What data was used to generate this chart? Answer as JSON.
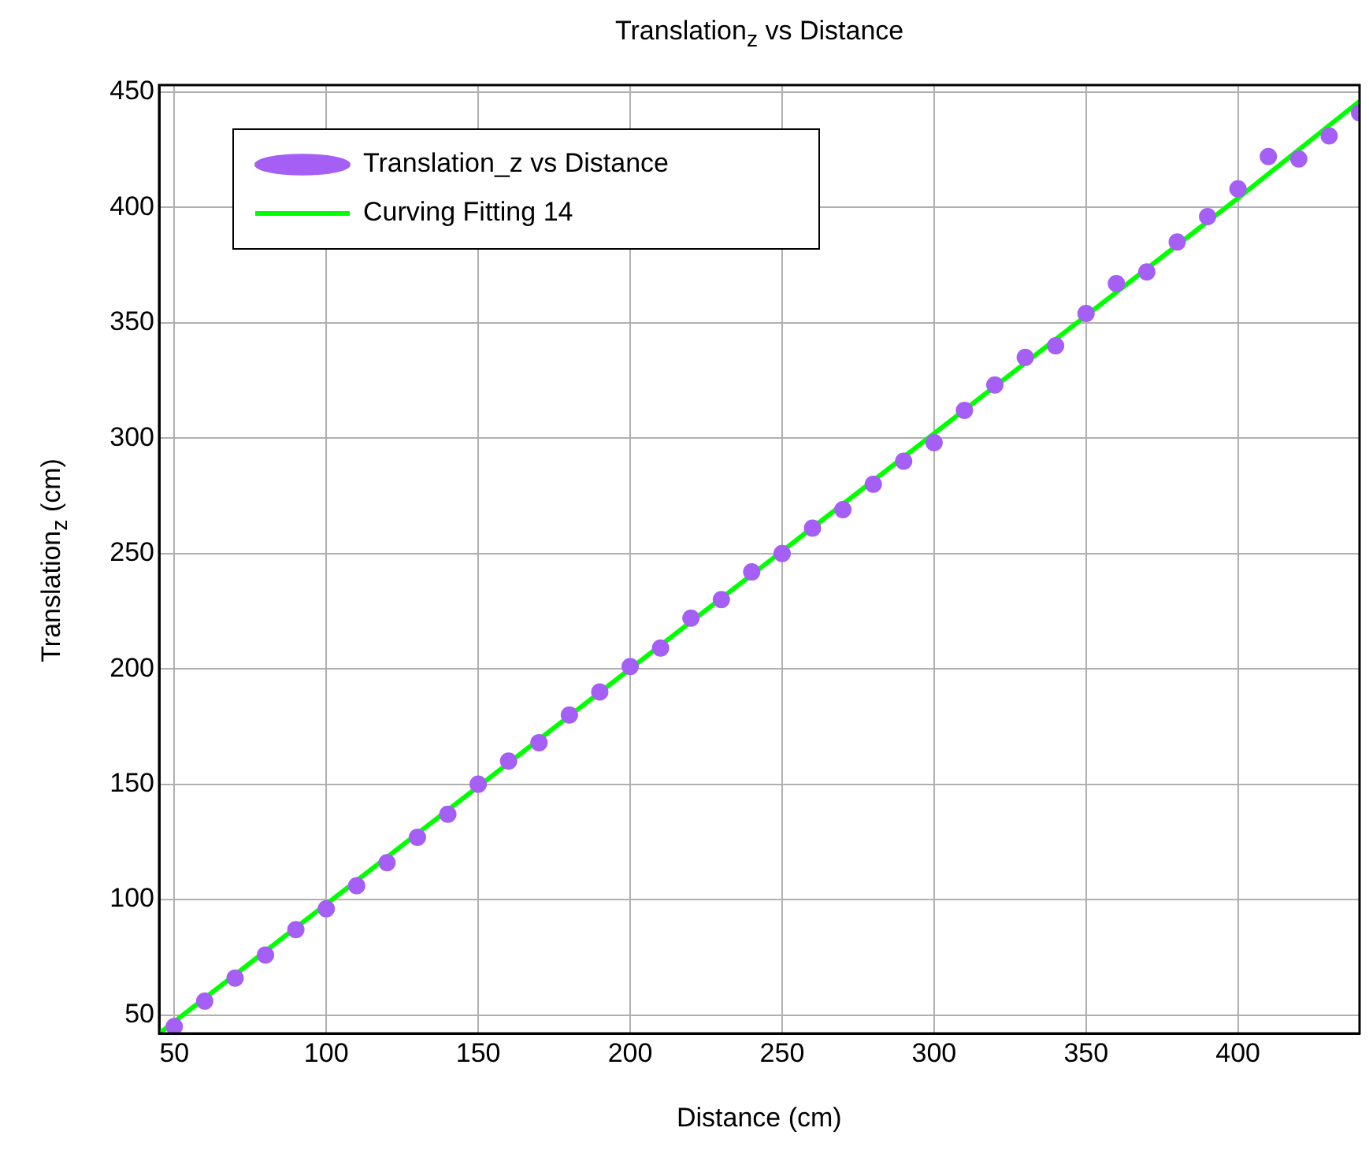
{
  "chart_data": {
    "type": "scatter",
    "title": "Translation$_{z}$ vs Distance",
    "xlabel": "Distance (cm)",
    "ylabel": "Translation$_{z}$ (cm)",
    "xlim": [
      45,
      440
    ],
    "xticks": [
      50,
      100,
      150,
      200,
      250,
      300,
      350,
      400
    ],
    "ylim": [
      42,
      453
    ],
    "yticks": [
      50,
      100,
      150,
      200,
      250,
      300,
      350,
      400,
      450
    ],
    "grid": true,
    "legend": "top left",
    "series": [
      {
        "name": "Translation_z vs Distance",
        "type": "scatter",
        "marker": "circle",
        "color": "#a55ff5",
        "x": [
          50,
          60,
          70,
          80,
          90,
          100,
          110,
          120,
          130,
          140,
          150,
          160,
          170,
          180,
          190,
          200,
          210,
          220,
          230,
          240,
          250,
          260,
          270,
          280,
          290,
          300,
          310,
          320,
          330,
          340,
          350,
          360,
          370,
          380,
          390,
          400,
          410,
          420,
          430,
          440
        ],
        "values": [
          45,
          56,
          66,
          76,
          87,
          96,
          106,
          116,
          127,
          137,
          150,
          160,
          168,
          180,
          190,
          201,
          209,
          222,
          230,
          242,
          250,
          261,
          269,
          280,
          290,
          298,
          312,
          323,
          335,
          340,
          354,
          367,
          372,
          385,
          396,
          408,
          422,
          421,
          431,
          441
        ]
      },
      {
        "name": "Curving Fitting 14",
        "type": "line",
        "marker": "none",
        "line_style": "solid",
        "color": "#00ff00",
        "x": [
          45,
          100,
          150,
          200,
          250,
          300,
          350,
          400,
          440
        ],
        "values": [
          42,
          98,
          149,
          200,
          251,
          302,
          353,
          404,
          446
        ]
      }
    ]
  }
}
